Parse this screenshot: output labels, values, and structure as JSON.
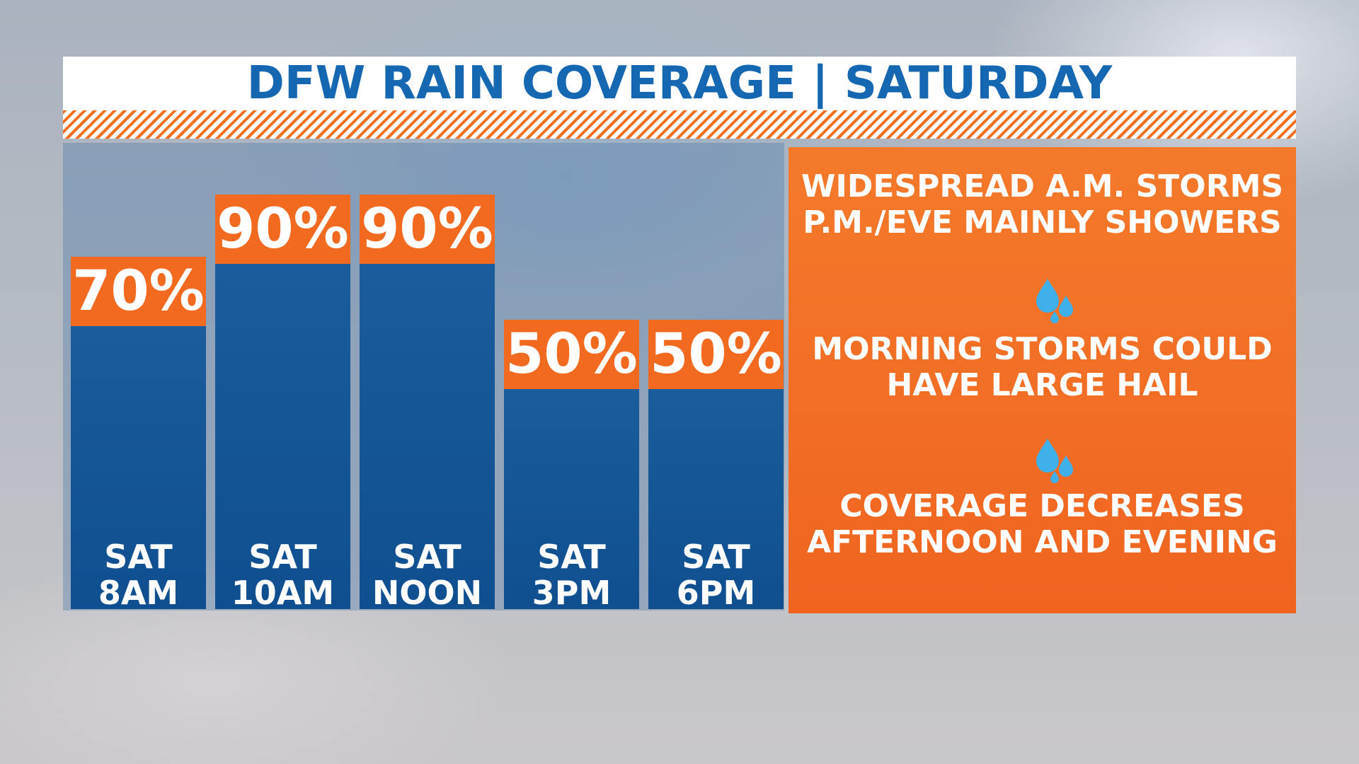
{
  "chart_data": {
    "type": "bar",
    "title": "DFW RAIN COVERAGE | SATURDAY",
    "categories": [
      "SAT 8AM",
      "SAT 10AM",
      "SAT NOON",
      "SAT 3PM",
      "SAT 6PM"
    ],
    "values": [
      70,
      90,
      90,
      50,
      50
    ],
    "value_labels": [
      "70%",
      "90%",
      "90%",
      "50%",
      "50%"
    ],
    "color": "#1a5c9c",
    "label_color": "#f26a1f",
    "annotations": [
      [
        "WIDESPREAD A.M. STORMS",
        "P.M./EVE MAINLY SHOWERS"
      ],
      [
        "MORNING STORMS COULD",
        "HAVE LARGE HAIL"
      ],
      [
        "COVERAGE DECREASES",
        "AFTERNOON AND EVENING"
      ]
    ]
  }
}
